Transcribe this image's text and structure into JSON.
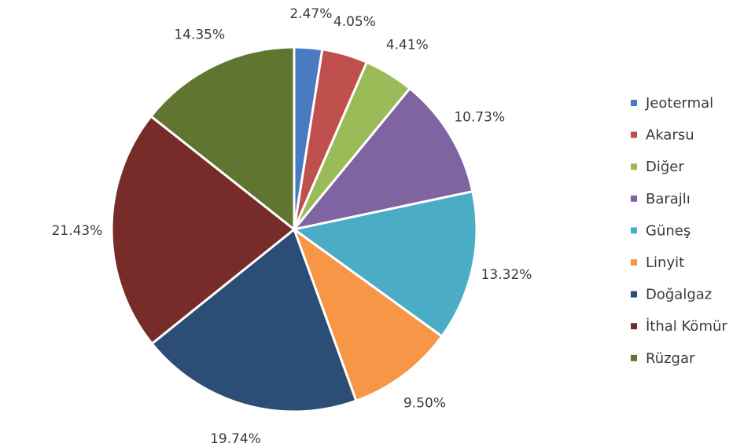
{
  "chart_data": {
    "type": "pie",
    "title": "",
    "legend_position": "right",
    "slices": [
      {
        "label": "Jeotermal",
        "value": 2.47,
        "display": "2.47%",
        "color": "#4a7ac0"
      },
      {
        "label": "Akarsu",
        "value": 4.05,
        "display": "4.05%",
        "color": "#c0504d"
      },
      {
        "label": "Diğer",
        "value": 4.41,
        "display": "4.41%",
        "color": "#9bbb59"
      },
      {
        "label": "Barajlı",
        "value": 10.73,
        "display": "10.73%",
        "color": "#8064a2"
      },
      {
        "label": "Güneş",
        "value": 13.32,
        "display": "13.32%",
        "color": "#4bacc6"
      },
      {
        "label": "Linyit",
        "value": 9.5,
        "display": "9.50%",
        "color": "#f79646"
      },
      {
        "label": "Doğalgaz",
        "value": 19.74,
        "display": "19.74%",
        "color": "#2c4d75"
      },
      {
        "label": "İthal Kömür",
        "value": 21.43,
        "display": "21.43%",
        "color": "#772c2a"
      },
      {
        "label": "Rüzgar",
        "value": 14.35,
        "display": "14.35%",
        "color": "#5f7530"
      }
    ]
  }
}
